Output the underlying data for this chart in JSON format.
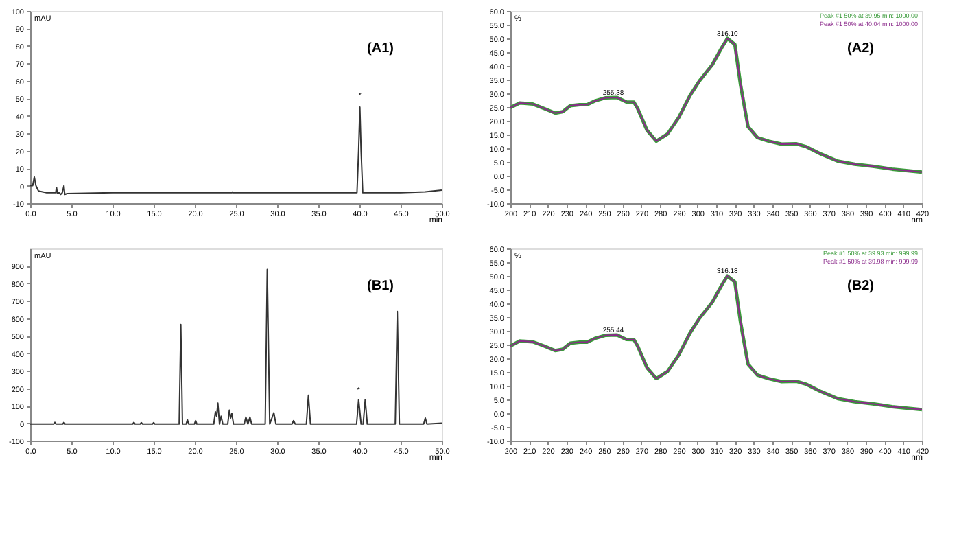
{
  "chart_data": [
    {
      "type": "line",
      "ylabel": "mAU",
      "xlabel": "min",
      "annotations": [
        "(A1)",
        {
          "text": "*",
          "x": 40.05,
          "y": 49
        }
      ],
      "x": [
        0,
        0.3,
        0.5,
        0.7,
        1,
        2,
        3.1,
        3.2,
        3.3,
        3.5,
        3.7,
        3.9,
        4.1,
        4.2,
        4.5,
        10,
        24.5,
        24.6,
        24.7,
        39.7,
        39.9,
        40.05,
        40.2,
        40.4,
        45,
        48,
        50
      ],
      "series": [
        {
          "color": "#333333",
          "values": [
            0,
            0,
            5,
            0,
            -3,
            -4,
            -4,
            -1,
            -4.5,
            -4,
            -5,
            -4,
            0,
            -5,
            -4.5,
            -4,
            -4,
            -3.5,
            -4,
            -4,
            20,
            45,
            20,
            -4,
            -4,
            -3.5,
            -2.5
          ]
        }
      ],
      "xlim": [
        0,
        50
      ],
      "ylim": [
        -10,
        100
      ],
      "xticks": [
        {
          "value": 0,
          "label": "0.0"
        },
        {
          "value": 5,
          "label": "5.0"
        },
        {
          "value": 10,
          "label": "10.0"
        },
        {
          "value": 15,
          "label": "15.0"
        },
        {
          "value": 20,
          "label": "20.0"
        },
        {
          "value": 25,
          "label": "25.0"
        },
        {
          "value": 30,
          "label": "30.0"
        },
        {
          "value": 35,
          "label": "35.0"
        },
        {
          "value": 40,
          "label": "40.0"
        },
        {
          "value": 45,
          "label": "45.0"
        },
        {
          "value": 50,
          "label": "50.0"
        }
      ],
      "yticks": [
        -10,
        0,
        10,
        20,
        30,
        40,
        50,
        60,
        70,
        80,
        90,
        100
      ],
      "grid": false,
      "marker": "none",
      "line_style": "solid",
      "legend": false
    },
    {
      "type": "line",
      "ylabel": "%",
      "xlabel": "nm",
      "annotations": [
        "(A2)",
        {
          "text": "316.10",
          "x": 316,
          "y": 50
        },
        {
          "text": "255.38",
          "x": 255,
          "y": 28.5
        }
      ],
      "x": [
        200,
        205,
        212,
        218,
        224,
        228,
        232,
        237,
        241,
        245,
        251,
        257,
        262,
        266,
        268,
        273,
        278,
        284,
        290,
        296,
        301,
        308,
        313,
        316,
        320,
        323,
        327,
        332,
        338,
        345,
        353,
        358,
        366,
        375,
        384,
        395,
        404,
        420
      ],
      "series": [
        {
          "name": "Peak #1 50% at 39.95 min: 1000.00",
          "color": "#3a9a3a",
          "values": [
            24.8,
            26.5,
            26.1,
            24.5,
            22.8,
            23.3,
            25.5,
            25.9,
            25.9,
            27.2,
            28.4,
            28.5,
            26.9,
            26.8,
            24.5,
            16.6,
            12.6,
            15.2,
            21.2,
            29.2,
            34.5,
            40.5,
            46.7,
            50.0,
            47.8,
            33.2,
            17.9,
            13.9,
            12.6,
            11.5,
            11.6,
            10.6,
            7.9,
            5.3,
            4.2,
            3.3,
            2.4,
            1.3
          ]
        },
        {
          "name": "Peak #1 50% at 40.04 min: 1000.00",
          "color": "#8b2a8b",
          "values": [
            24.8,
            26.5,
            26.1,
            24.5,
            22.8,
            23.3,
            25.5,
            25.9,
            25.9,
            27.2,
            28.4,
            28.5,
            26.9,
            26.8,
            24.5,
            16.6,
            12.6,
            15.2,
            21.2,
            29.2,
            34.5,
            40.5,
            46.7,
            50.0,
            47.8,
            33.2,
            17.9,
            13.9,
            12.6,
            11.5,
            11.6,
            10.6,
            7.9,
            5.3,
            4.2,
            3.3,
            2.4,
            1.3
          ]
        }
      ],
      "xlim": [
        200,
        420
      ],
      "ylim": [
        -10,
        60
      ],
      "xticks": [
        200,
        210,
        220,
        230,
        240,
        250,
        260,
        270,
        280,
        290,
        300,
        310,
        320,
        330,
        340,
        350,
        360,
        370,
        380,
        390,
        400,
        410,
        420
      ],
      "yticks": [
        {
          "value": -10,
          "label": "-10.0"
        },
        {
          "value": -5,
          "label": "-5.0"
        },
        {
          "value": 0,
          "label": "0.0"
        },
        {
          "value": 5,
          "label": "5.0"
        },
        {
          "value": 10,
          "label": "10.0"
        },
        {
          "value": 15,
          "label": "15.0"
        },
        {
          "value": 20,
          "label": "20.0"
        },
        {
          "value": 25,
          "label": "25.0"
        },
        {
          "value": 30,
          "label": "30.0"
        },
        {
          "value": 35,
          "label": "35.0"
        },
        {
          "value": 40,
          "label": "40.0"
        },
        {
          "value": 45,
          "label": "45.0"
        },
        {
          "value": 50,
          "label": "50.0"
        },
        {
          "value": 55,
          "label": "55.0"
        },
        {
          "value": 60,
          "label": "60.0"
        }
      ],
      "grid": false,
      "marker": "none",
      "line_style": "solid",
      "legend": "top right"
    },
    {
      "type": "line",
      "ylabel": "mAU",
      "xlabel": "min",
      "annotations": [
        "(B1)",
        {
          "text": "*",
          "x": 39.9,
          "y": 165
        }
      ],
      "x": [
        0,
        2.85,
        3.0,
        3.15,
        3.95,
        4.1,
        4.25,
        12.45,
        12.6,
        12.75,
        13.35,
        13.5,
        13.65,
        14.85,
        15,
        15.15,
        18.1,
        18.3,
        18.5,
        18.95,
        19.1,
        19.25,
        19.95,
        20.1,
        20.25,
        22.3,
        22.5,
        22.65,
        22.8,
        23.0,
        23.2,
        23.4,
        24.0,
        24.2,
        24.35,
        24.5,
        24.7,
        26.0,
        26.2,
        26.45,
        26.7,
        26.9,
        28.55,
        28.8,
        29.1,
        29.6,
        29.85,
        31.8,
        32,
        32.2,
        33.55,
        33.8,
        34.05,
        39.65,
        39.9,
        40.2,
        40.45,
        40.7,
        40.95,
        44.35,
        44.6,
        44.85,
        47.8,
        48,
        48.2,
        50
      ],
      "series": [
        {
          "color": "#333333",
          "values": [
            -5,
            -5,
            5,
            -5,
            -5,
            5,
            -5,
            -5,
            5,
            -5,
            -5,
            3,
            -5,
            -5,
            3,
            -5,
            -5,
            565,
            -5,
            -5,
            20,
            -5,
            -5,
            15,
            -5,
            -5,
            65,
            40,
            115,
            -5,
            40,
            -5,
            -5,
            75,
            30,
            55,
            -5,
            -5,
            35,
            -5,
            35,
            -5,
            -5,
            880,
            -5,
            60,
            -5,
            -5,
            15,
            -5,
            -5,
            160,
            -5,
            -5,
            135,
            -5,
            -5,
            135,
            -5,
            -5,
            640,
            -5,
            -5,
            30,
            -5,
            0
          ]
        }
      ],
      "xlim": [
        0,
        50
      ],
      "ylim": [
        -100,
        1000
      ],
      "xticks": [
        {
          "value": 0,
          "label": "0.0"
        },
        {
          "value": 5,
          "label": "5.0"
        },
        {
          "value": 10,
          "label": "10.0"
        },
        {
          "value": 15,
          "label": "15.0"
        },
        {
          "value": 20,
          "label": "20.0"
        },
        {
          "value": 25,
          "label": "25.0"
        },
        {
          "value": 30,
          "label": "30.0"
        },
        {
          "value": 35,
          "label": "35.0"
        },
        {
          "value": 40,
          "label": "40.0"
        },
        {
          "value": 45,
          "label": "45.0"
        },
        {
          "value": 50,
          "label": "50.0"
        }
      ],
      "yticks": [
        -100,
        0,
        100,
        200,
        300,
        400,
        500,
        600,
        700,
        800,
        900
      ],
      "grid": false,
      "marker": "none",
      "line_style": "solid",
      "legend": false
    },
    {
      "type": "line",
      "ylabel": "%",
      "xlabel": "nm",
      "annotations": [
        "(B2)",
        {
          "text": "316.18",
          "x": 316,
          "y": 50
        },
        {
          "text": "255.44",
          "x": 255,
          "y": 28.5
        }
      ],
      "x": [
        200,
        205,
        212,
        218,
        224,
        228,
        232,
        237,
        241,
        245,
        251,
        257,
        262,
        266,
        268,
        273,
        278,
        284,
        290,
        296,
        301,
        308,
        313,
        316,
        320,
        323,
        327,
        332,
        338,
        345,
        353,
        358,
        366,
        375,
        384,
        395,
        404,
        420
      ],
      "series": [
        {
          "name": "Peak #1 50% at 39.93 min: 999.99",
          "color": "#3a9a3a",
          "values": [
            24.5,
            26.3,
            26.0,
            24.5,
            22.8,
            23.3,
            25.5,
            25.9,
            25.9,
            27.2,
            28.4,
            28.5,
            26.9,
            26.8,
            24.5,
            16.6,
            12.6,
            15.2,
            21.2,
            29.2,
            34.5,
            40.5,
            46.7,
            50.0,
            47.8,
            33.2,
            17.9,
            13.9,
            12.6,
            11.5,
            11.6,
            10.6,
            7.9,
            5.3,
            4.2,
            3.3,
            2.4,
            1.3
          ]
        },
        {
          "name": "Peak #1 50% at 39.98 min: 999.99",
          "color": "#8b2a8b",
          "values": [
            24.5,
            26.3,
            26.0,
            24.5,
            22.8,
            23.3,
            25.5,
            25.9,
            25.9,
            27.2,
            28.4,
            28.5,
            26.9,
            26.8,
            24.5,
            16.6,
            12.6,
            15.2,
            21.2,
            29.2,
            34.5,
            40.5,
            46.7,
            50.0,
            47.8,
            33.2,
            17.9,
            13.9,
            12.6,
            11.5,
            11.6,
            10.6,
            7.9,
            5.3,
            4.2,
            3.3,
            2.4,
            1.3
          ]
        }
      ],
      "xlim": [
        200,
        420
      ],
      "ylim": [
        -10,
        60
      ],
      "xticks": [
        200,
        210,
        220,
        230,
        240,
        250,
        260,
        270,
        280,
        290,
        300,
        310,
        320,
        330,
        340,
        350,
        360,
        370,
        380,
        390,
        400,
        410,
        420
      ],
      "yticks": [
        {
          "value": -10,
          "label": "-10.0"
        },
        {
          "value": -5,
          "label": "-5.0"
        },
        {
          "value": 0,
          "label": "0.0"
        },
        {
          "value": 5,
          "label": "5.0"
        },
        {
          "value": 10,
          "label": "10.0"
        },
        {
          "value": 15,
          "label": "15.0"
        },
        {
          "value": 20,
          "label": "20.0"
        },
        {
          "value": 25,
          "label": "25.0"
        },
        {
          "value": 30,
          "label": "30.0"
        },
        {
          "value": 35,
          "label": "35.0"
        },
        {
          "value": 40,
          "label": "40.0"
        },
        {
          "value": 45,
          "label": "45.0"
        },
        {
          "value": 50,
          "label": "50.0"
        },
        {
          "value": 55,
          "label": "55.0"
        },
        {
          "value": 60,
          "label": "60.0"
        }
      ],
      "grid": false,
      "marker": "none",
      "line_style": "solid",
      "legend": "top right"
    }
  ]
}
